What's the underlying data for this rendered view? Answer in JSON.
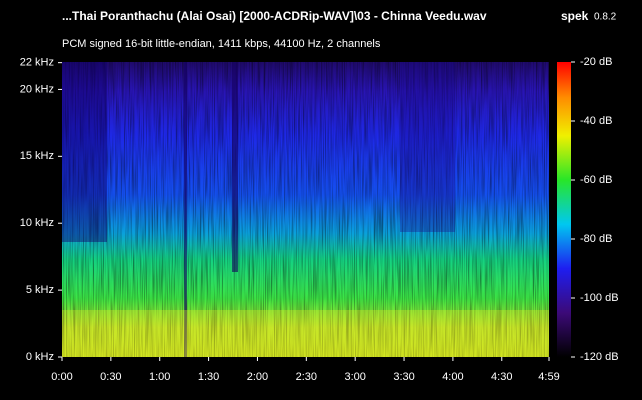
{
  "chart_data": {
    "type": "spectrogram",
    "title": "...Thai Poranthachu (Alai Osai) [2000-ACDRip-WAV]\\03 - Chinna Veedu.wav",
    "app_name": "spek",
    "app_version": "0.8.2",
    "subtitle": "PCM signed 16-bit little-endian, 1411 kbps, 44100 Hz, 2 channels",
    "xlim": [
      0,
      299
    ],
    "xticks": [
      {
        "value": 0,
        "label": "0:00"
      },
      {
        "value": 30,
        "label": "0:30"
      },
      {
        "value": 60,
        "label": "1:00"
      },
      {
        "value": 90,
        "label": "1:30"
      },
      {
        "value": 120,
        "label": "2:00"
      },
      {
        "value": 150,
        "label": "2:30"
      },
      {
        "value": 180,
        "label": "3:00"
      },
      {
        "value": 210,
        "label": "3:30"
      },
      {
        "value": 240,
        "label": "4:00"
      },
      {
        "value": 270,
        "label": "4:30"
      },
      {
        "value": 299,
        "label": "4:59"
      }
    ],
    "ylim": [
      0,
      22.05
    ],
    "yticks": [
      {
        "value": 0,
        "label": "0 kHz"
      },
      {
        "value": 5,
        "label": "5 kHz"
      },
      {
        "value": 10,
        "label": "10 kHz"
      },
      {
        "value": 15,
        "label": "15 kHz"
      },
      {
        "value": 20,
        "label": "20 kHz"
      },
      {
        "value": 22,
        "label": "22 kHz"
      }
    ],
    "zlim": [
      -120,
      -20
    ],
    "zticks": [
      {
        "value": -20,
        "label": "-20 dB"
      },
      {
        "value": -40,
        "label": "-40 dB"
      },
      {
        "value": -60,
        "label": "-60 dB"
      },
      {
        "value": -80,
        "label": "-80 dB"
      },
      {
        "value": -100,
        "label": "-100 dB"
      },
      {
        "value": -120,
        "label": "-120 dB"
      }
    ]
  }
}
